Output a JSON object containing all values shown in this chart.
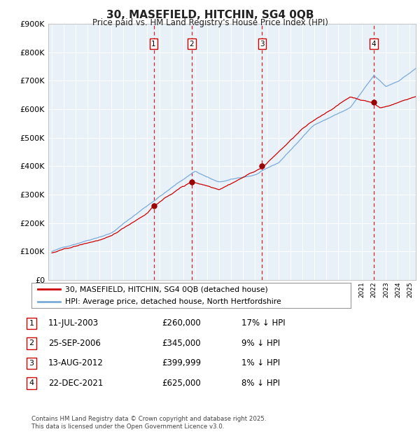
{
  "title": "30, MASEFIELD, HITCHIN, SG4 0QB",
  "subtitle": "Price paid vs. HM Land Registry's House Price Index (HPI)",
  "background_color": "#ffffff",
  "chart_bg_color": "#e8f0f8",
  "grid_color": "#ffffff",
  "ylim": [
    0,
    900000
  ],
  "yticks": [
    0,
    100000,
    200000,
    300000,
    400000,
    500000,
    600000,
    700000,
    800000,
    900000
  ],
  "ytick_labels": [
    "£0",
    "£100K",
    "£200K",
    "£300K",
    "£400K",
    "£500K",
    "£600K",
    "£700K",
    "£800K",
    "£900K"
  ],
  "xlim_start": 1994.7,
  "xlim_end": 2025.5,
  "sale_points": [
    {
      "date": 2003.53,
      "price": 260000,
      "label": "1"
    },
    {
      "date": 2006.73,
      "price": 345000,
      "label": "2"
    },
    {
      "date": 2012.62,
      "price": 399999,
      "label": "3"
    },
    {
      "date": 2021.98,
      "price": 625000,
      "label": "4"
    }
  ],
  "legend_line1": "30, MASEFIELD, HITCHIN, SG4 0QB (detached house)",
  "legend_line2": "HPI: Average price, detached house, North Hertfordshire",
  "table_entries": [
    {
      "num": "1",
      "date": "11-JUL-2003",
      "price": "£260,000",
      "note": "17% ↓ HPI"
    },
    {
      "num": "2",
      "date": "25-SEP-2006",
      "price": "£345,000",
      "note": "9% ↓ HPI"
    },
    {
      "num": "3",
      "date": "13-AUG-2012",
      "price": "£399,999",
      "note": "1% ↓ HPI"
    },
    {
      "num": "4",
      "date": "22-DEC-2021",
      "price": "£625,000",
      "note": "8% ↓ HPI"
    }
  ],
  "footer": "Contains HM Land Registry data © Crown copyright and database right 2025.\nThis data is licensed under the Open Government Licence v3.0.",
  "line_color_red": "#cc0000",
  "line_color_blue": "#7aabda",
  "vline_color": "#cc0000",
  "sale_marker_color": "#990000"
}
